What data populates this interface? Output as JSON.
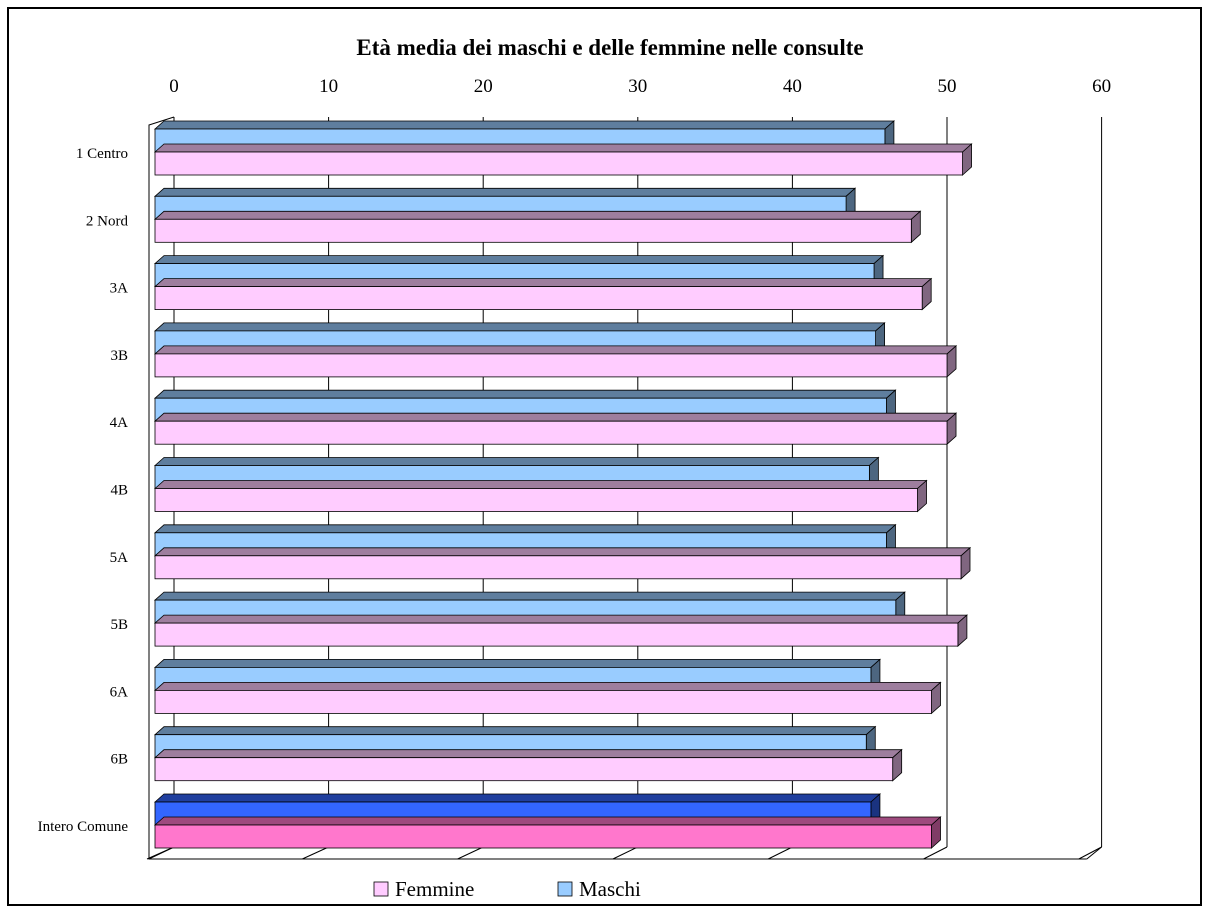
{
  "chart_data": {
    "type": "bar",
    "orientation": "horizontal",
    "three_d": true,
    "title": "Età media dei maschi e delle femmine nelle consulte",
    "xlabel": "",
    "ylabel": "",
    "xlim": [
      0,
      60
    ],
    "x_ticks": [
      0,
      10,
      20,
      30,
      40,
      50,
      60
    ],
    "x_tick_labels": [
      "0",
      "10",
      "20",
      "30",
      "40",
      "50",
      "60"
    ],
    "x_axis_position": "top",
    "grid": true,
    "legend_position": "bottom",
    "categories": [
      "1 Centro",
      "2 Nord",
      "3A",
      "3B",
      "4A",
      "4B",
      "5A",
      "5B",
      "6A",
      "6B",
      "Intero Comune"
    ],
    "series": [
      {
        "name": "Maschi",
        "values": [
          47.0,
          44.5,
          46.3,
          46.4,
          47.1,
          46.0,
          47.1,
          47.7,
          46.1,
          45.8,
          46.1
        ],
        "color": "#99ccff",
        "highlight_color": "#3366ff"
      },
      {
        "name": "Femmine",
        "values": [
          52.0,
          48.7,
          49.4,
          51.0,
          51.0,
          49.1,
          51.9,
          51.7,
          50.0,
          47.5,
          50.0
        ],
        "color": "#ffccff",
        "highlight_color": "#ff77cc"
      }
    ],
    "highlight_category": "Intero Comune"
  }
}
